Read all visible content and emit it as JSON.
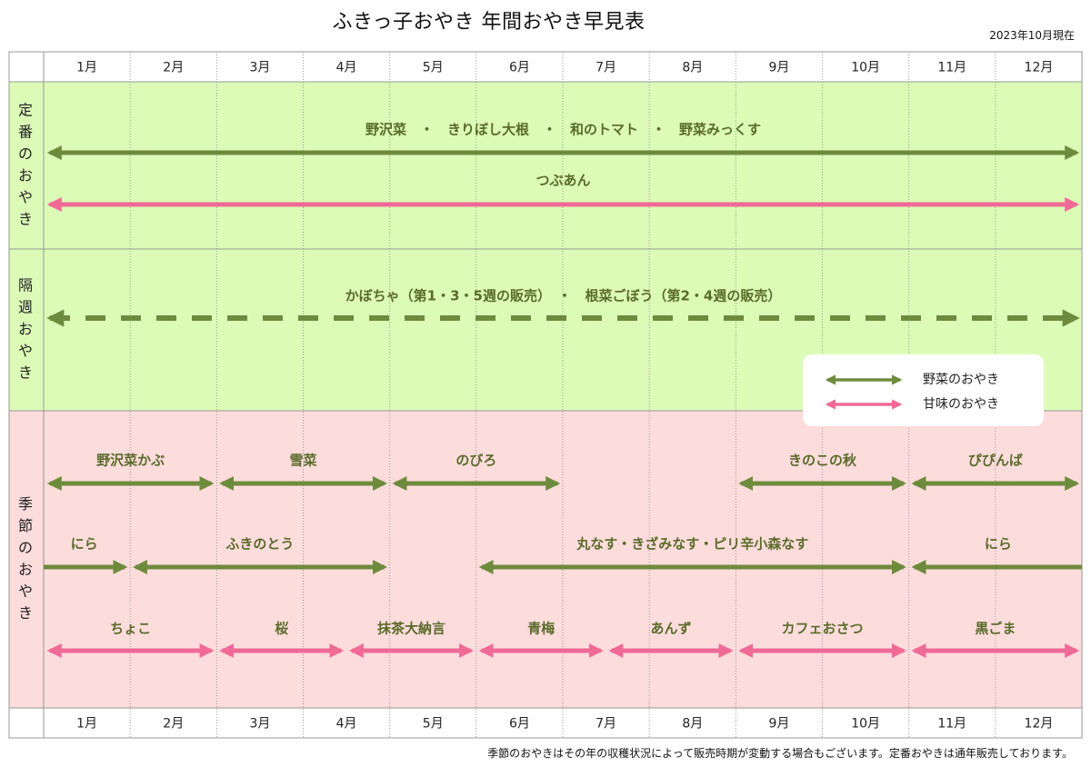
{
  "title": "ふきっ子おやき 年間おやき早見表",
  "as_of": "2023年10月現在",
  "footnote": "季節のおやきはその年の収穫状況によって販売時期が変動する場合もございます。定番おやきは通年販売しております。",
  "colors": {
    "vegetable": "#6e8b3d",
    "sweet": "#f06a96",
    "green_band": "#dcfbb7",
    "pink_band": "#fddcdc",
    "label_text": "#5a6b2b",
    "grid": "#999999"
  },
  "chart_data": {
    "type": "timeline",
    "months": [
      "1月",
      "2月",
      "3月",
      "4月",
      "5月",
      "6月",
      "7月",
      "8月",
      "9月",
      "10月",
      "11月",
      "12月"
    ],
    "sections": [
      {
        "key": "regular",
        "label": "定番のおやき",
        "band": "green"
      },
      {
        "key": "biweekly",
        "label": "隔週おやき",
        "band": "green"
      },
      {
        "key": "seasonal",
        "label": "季節のおやき",
        "band": "pink"
      }
    ],
    "legend": [
      {
        "label": "野菜のおやき",
        "kind": "vegetable"
      },
      {
        "label": "甘味のおやき",
        "kind": "sweet"
      }
    ],
    "items": [
      {
        "section": "regular",
        "row": 0,
        "label": "野沢菜　・　きりぼし大根　・　和のトマト　・　野菜みっくす",
        "kind": "vegetable",
        "start": 1.0,
        "end": 13.0,
        "style": "solid",
        "arrows": "both"
      },
      {
        "section": "regular",
        "row": 1,
        "label": "つぶあん",
        "kind": "sweet",
        "start": 1.0,
        "end": 13.0,
        "style": "solid",
        "arrows": "both"
      },
      {
        "section": "biweekly",
        "row": 0,
        "label": "かぼちゃ（第1・3・5週の販売）　・　根菜ごぼう（第2・4週の販売）",
        "kind": "vegetable",
        "start": 1.0,
        "end": 13.0,
        "style": "dashed",
        "arrows": "both"
      },
      {
        "section": "seasonal",
        "row": 0,
        "label": "野沢菜かぶ",
        "kind": "vegetable",
        "start": 1.0,
        "end": 3.0,
        "style": "solid",
        "arrows": "both"
      },
      {
        "section": "seasonal",
        "row": 0,
        "label": "雪菜",
        "kind": "vegetable",
        "start": 3.0,
        "end": 5.0,
        "style": "solid",
        "arrows": "both"
      },
      {
        "section": "seasonal",
        "row": 0,
        "label": "のびろ",
        "kind": "vegetable",
        "start": 5.0,
        "end": 7.0,
        "style": "solid",
        "arrows": "both"
      },
      {
        "section": "seasonal",
        "row": 0,
        "label": "きのこの秋",
        "kind": "vegetable",
        "start": 9.0,
        "end": 11.0,
        "style": "solid",
        "arrows": "both"
      },
      {
        "section": "seasonal",
        "row": 0,
        "label": "ぴぴんば",
        "kind": "vegetable",
        "start": 11.0,
        "end": 13.0,
        "style": "solid",
        "arrows": "both"
      },
      {
        "section": "seasonal",
        "row": 1,
        "label": "にら",
        "kind": "vegetable",
        "start": 1.0,
        "end": 2.0,
        "style": "solid",
        "arrows": "right"
      },
      {
        "section": "seasonal",
        "row": 1,
        "label": "ふきのとう",
        "kind": "vegetable",
        "start": 2.0,
        "end": 5.0,
        "style": "solid",
        "arrows": "both"
      },
      {
        "section": "seasonal",
        "row": 1,
        "label": "丸なす・きざみなす・ピリ辛小森なす",
        "kind": "vegetable",
        "start": 6.0,
        "end": 11.0,
        "style": "solid",
        "arrows": "both"
      },
      {
        "section": "seasonal",
        "row": 1,
        "label": "にら",
        "kind": "vegetable",
        "start": 11.0,
        "end": 13.0,
        "style": "solid",
        "arrows": "left"
      },
      {
        "section": "seasonal",
        "row": 2,
        "label": "ちょこ",
        "kind": "sweet",
        "start": 1.0,
        "end": 3.0,
        "style": "solid",
        "arrows": "both"
      },
      {
        "section": "seasonal",
        "row": 2,
        "label": "桜",
        "kind": "sweet",
        "start": 3.0,
        "end": 4.5,
        "style": "solid",
        "arrows": "both"
      },
      {
        "section": "seasonal",
        "row": 2,
        "label": "抹茶大納言",
        "kind": "sweet",
        "start": 4.5,
        "end": 6.0,
        "style": "solid",
        "arrows": "both"
      },
      {
        "section": "seasonal",
        "row": 2,
        "label": "青梅",
        "kind": "sweet",
        "start": 6.0,
        "end": 7.5,
        "style": "solid",
        "arrows": "both"
      },
      {
        "section": "seasonal",
        "row": 2,
        "label": "あんず",
        "kind": "sweet",
        "start": 7.5,
        "end": 9.0,
        "style": "solid",
        "arrows": "both"
      },
      {
        "section": "seasonal",
        "row": 2,
        "label": "カフェおさつ",
        "kind": "sweet",
        "start": 9.0,
        "end": 11.0,
        "style": "solid",
        "arrows": "both"
      },
      {
        "section": "seasonal",
        "row": 2,
        "label": "黒ごま",
        "kind": "sweet",
        "start": 11.0,
        "end": 13.0,
        "style": "solid",
        "arrows": "both"
      }
    ]
  }
}
